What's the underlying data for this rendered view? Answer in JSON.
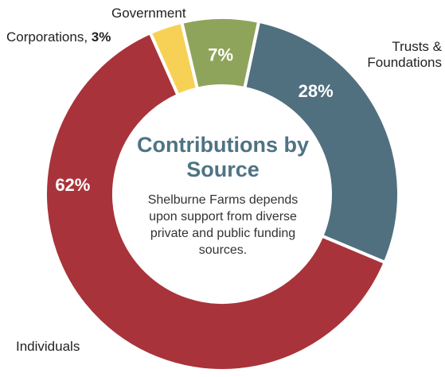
{
  "chart_data": {
    "type": "pie",
    "donut": true,
    "title": "Contributions by Source",
    "description": "Shelburne Farms depends upon support from diverse private and public funding sources.",
    "slices": [
      {
        "label": "Trusts & Foundations",
        "value": 28,
        "value_label": "28%",
        "color": "#50707f"
      },
      {
        "label": "Individuals",
        "value": 62,
        "value_label": "62%",
        "color": "#a9333a"
      },
      {
        "label": "Corporations",
        "value": 3,
        "value_label": "3%",
        "color": "#f7d155"
      },
      {
        "label": "Government",
        "value": 7,
        "value_label": "7%",
        "color": "#8fa45b"
      }
    ]
  }
}
